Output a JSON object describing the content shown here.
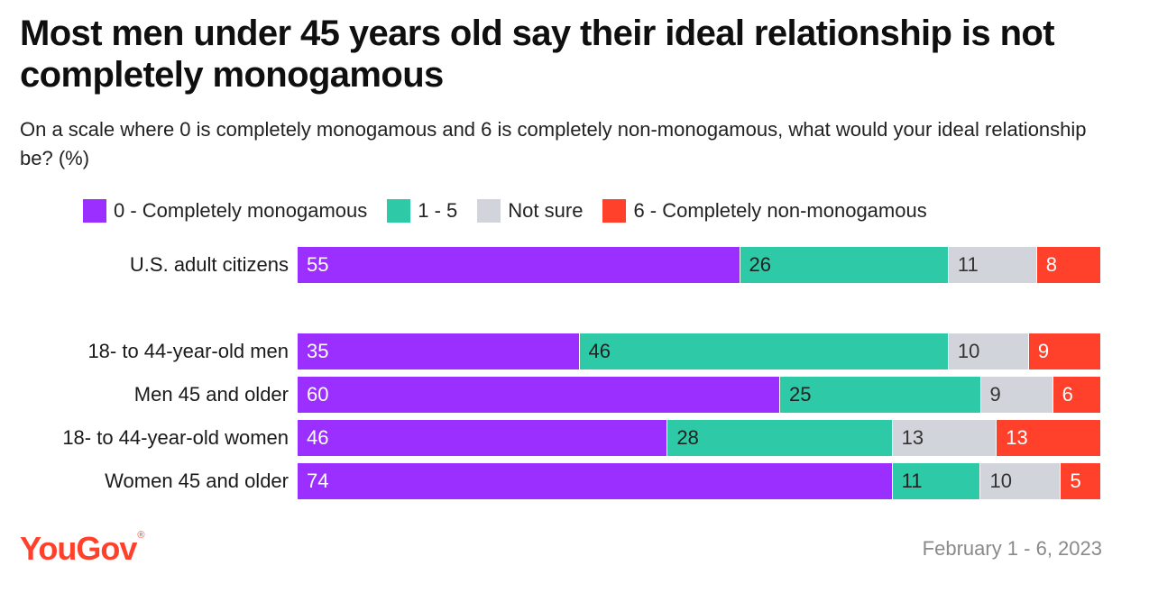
{
  "title": "Most men under 45 years old say their ideal relationship is not completely monogamous",
  "subtitle": "On a scale where 0 is completely monogamous and 6 is completely non-monogamous, what would your ideal relationship be? (%)",
  "source": {
    "logo_text": "YouGov",
    "date": "February 1 - 6, 2023"
  },
  "chart_data": {
    "type": "bar",
    "orientation": "horizontal",
    "stacked": true,
    "normalized_to": 100,
    "title": "Most men under 45 years old say their ideal relationship is not completely monogamous",
    "subtitle": "On a scale where 0 is completely monogamous and 6 is completely non-monogamous, what would your ideal relationship be? (%)",
    "legend_position": "top",
    "categories": [
      "U.S. adult citizens",
      "18- to 44-year-old men",
      "Men 45 and older",
      "18- to 44-year-old women",
      "Women 45 and older"
    ],
    "series": [
      {
        "name": "0 - Completely monogamous",
        "color": "#9b2fff",
        "text_color": "#ffffff",
        "values": [
          55,
          35,
          60,
          46,
          74
        ]
      },
      {
        "name": "1 - 5",
        "color": "#2ecaa8",
        "text_color": "#222222",
        "values": [
          26,
          46,
          25,
          28,
          11
        ]
      },
      {
        "name": "Not sure",
        "color": "#d2d4dc",
        "text_color": "#333333",
        "values": [
          11,
          10,
          9,
          13,
          10
        ]
      },
      {
        "name": "6 - Completely non-monogamous",
        "color": "#ff412c",
        "text_color": "#ffffff",
        "values": [
          8,
          9,
          6,
          13,
          5
        ]
      }
    ]
  }
}
